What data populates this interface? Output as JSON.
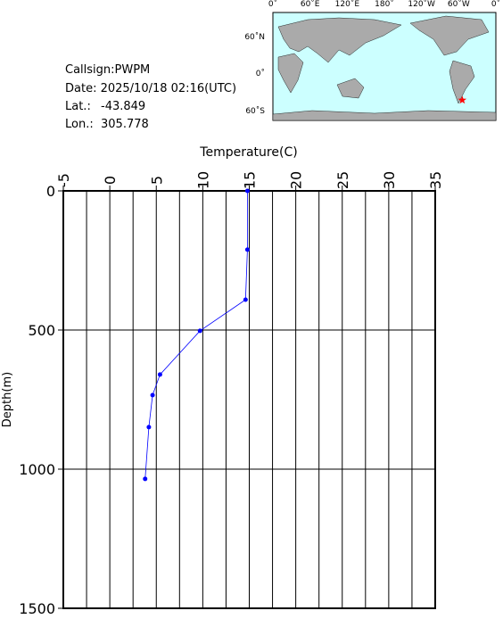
{
  "station": {
    "callsign": "Callsign:PWPM",
    "date": "Date:  2025/10/18 02:16(UTC)",
    "lat": {
      "label": "Lat.:",
      "value": -43.849
    },
    "lon": {
      "label": "Lon.:",
      "value": 305.778
    }
  },
  "map": {
    "lon_labels": [
      "0˚",
      "60˚E",
      "120˚E",
      "180˚",
      "120˚W",
      "60˚W",
      "0˚"
    ],
    "lat_labels": [
      "60˚N",
      "0˚",
      "60˚S"
    ],
    "marker_color": "#ff0000"
  },
  "chart_data": {
    "type": "line",
    "xlabel": "Temperature(C)",
    "ylabel": "Depth(m)",
    "xlim": [
      -5,
      35
    ],
    "ylim": [
      0,
      1500
    ],
    "y_inverted": true,
    "xticks": [
      -5,
      0,
      5,
      10,
      15,
      20,
      25,
      30,
      35
    ],
    "yticks": [
      0,
      500,
      1000,
      1500
    ],
    "xgrid_minor": [
      -2.5,
      2.5,
      7.5,
      12.5,
      17.5,
      22.5,
      27.5,
      32.5
    ],
    "grid": true,
    "series": [
      {
        "color": "#0000ff",
        "x": [
          14.8,
          14.8,
          14.6,
          9.7,
          5.4,
          4.6,
          4.2,
          3.8
        ],
        "values": [
          0,
          211,
          391,
          503,
          660,
          734,
          849,
          1035
        ]
      }
    ]
  }
}
